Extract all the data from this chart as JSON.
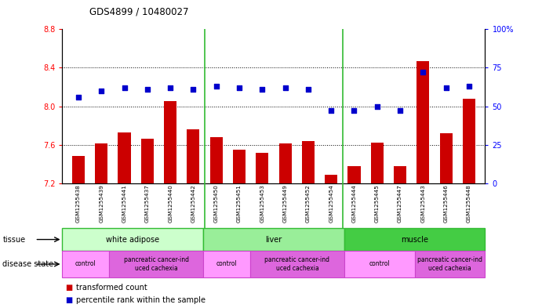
{
  "title": "GDS4899 / 10480027",
  "samples": [
    "GSM1255438",
    "GSM1255439",
    "GSM1255441",
    "GSM1255437",
    "GSM1255440",
    "GSM1255442",
    "GSM1255450",
    "GSM1255451",
    "GSM1255453",
    "GSM1255449",
    "GSM1255452",
    "GSM1255454",
    "GSM1255444",
    "GSM1255445",
    "GSM1255447",
    "GSM1255443",
    "GSM1255446",
    "GSM1255448"
  ],
  "transformed_count": [
    7.48,
    7.61,
    7.73,
    7.66,
    8.05,
    7.76,
    7.68,
    7.55,
    7.52,
    7.61,
    7.64,
    7.29,
    7.38,
    7.62,
    7.38,
    8.47,
    7.72,
    8.08
  ],
  "percentile_rank": [
    56,
    60,
    62,
    61,
    62,
    61,
    63,
    62,
    61,
    62,
    61,
    47,
    47,
    50,
    47,
    72,
    62,
    63
  ],
  "ylim_left": [
    7.2,
    8.8
  ],
  "ylim_right": [
    0,
    100
  ],
  "yticks_left": [
    7.2,
    7.6,
    8.0,
    8.4,
    8.8
  ],
  "yticks_right": [
    0,
    25,
    50,
    75,
    100
  ],
  "bar_color": "#cc0000",
  "dot_color": "#0000cc",
  "tissue_groups": [
    {
      "label": "white adipose",
      "start": 0,
      "end": 6,
      "color": "#ccffcc"
    },
    {
      "label": "liver",
      "start": 6,
      "end": 12,
      "color": "#99ee99"
    },
    {
      "label": "muscle",
      "start": 12,
      "end": 18,
      "color": "#44cc44"
    }
  ],
  "disease_groups": [
    {
      "label": "control",
      "start": 0,
      "end": 2,
      "color": "#ff99ff"
    },
    {
      "label": "pancreatic cancer-ind\nuced cachexia",
      "start": 2,
      "end": 6,
      "color": "#dd66dd"
    },
    {
      "label": "control",
      "start": 6,
      "end": 8,
      "color": "#ff99ff"
    },
    {
      "label": "pancreatic cancer-ind\nuced cachexia",
      "start": 8,
      "end": 12,
      "color": "#dd66dd"
    },
    {
      "label": "control",
      "start": 12,
      "end": 15,
      "color": "#ff99ff"
    },
    {
      "label": "pancreatic cancer-ind\nuced cachexia",
      "start": 15,
      "end": 18,
      "color": "#dd66dd"
    }
  ],
  "legend_bar_label": "transformed count",
  "legend_dot_label": "percentile rank within the sample",
  "background_color": "#d4d4d4",
  "tissue_border_color": "#33bb33",
  "disease_border_color": "#cc44cc"
}
